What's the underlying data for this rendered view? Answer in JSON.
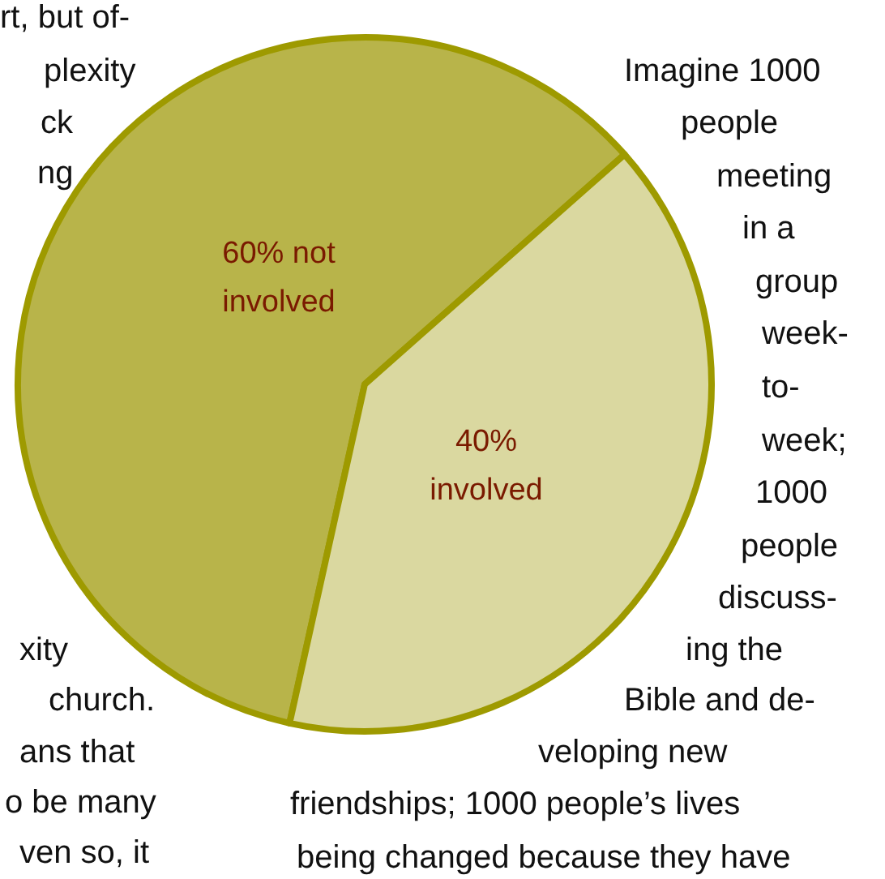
{
  "chart_data": {
    "type": "pie",
    "categories": [
      "not involved",
      "involved"
    ],
    "values": [
      60,
      40
    ],
    "colors": [
      "#b8b44a",
      "#dad8a0"
    ],
    "value_labels": [
      "60%",
      "40%"
    ],
    "annotations": [
      "rt, but of-",
      "plexity",
      "ck",
      "ng",
      "xity",
      "church.",
      "ans that",
      "o be many",
      "ven so, it",
      "Imagine 1000",
      "people",
      "meeting",
      "in a",
      "group",
      "week-",
      "to-",
      "week;",
      "1000",
      "people",
      "discuss-",
      "ing the",
      "Bible and de-",
      "veloping new",
      "friendships; 1000 people’s lives",
      "being changed because they have"
    ]
  }
}
